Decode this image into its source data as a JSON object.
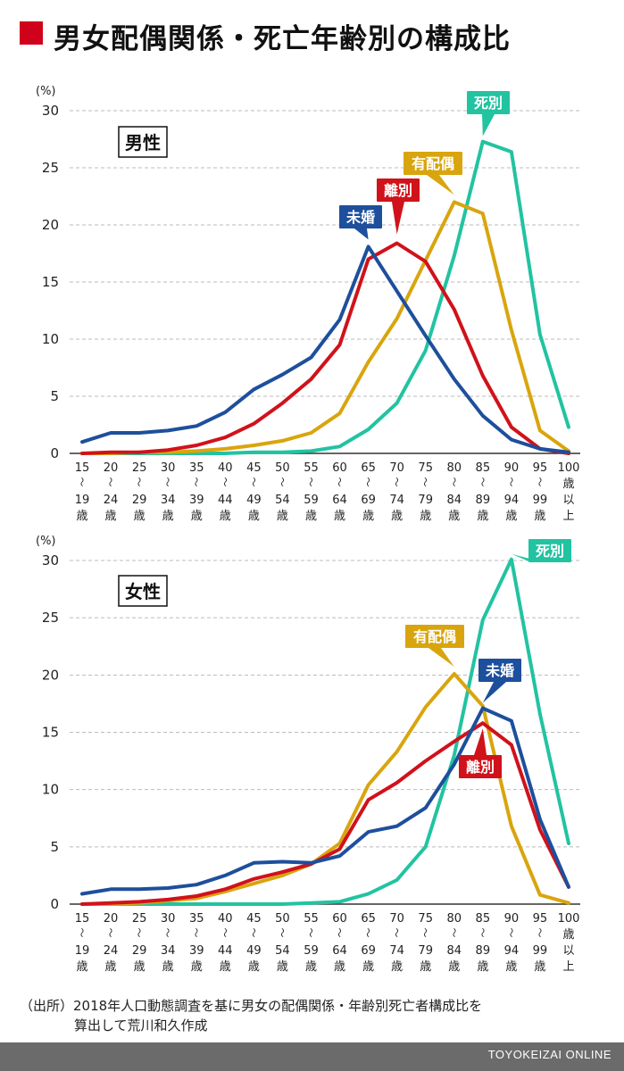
{
  "title": "男女配偶関係・死亡年齢別の構成比",
  "source": {
    "line1": "（出所）2018年人口動態調査を基に男女の配偶関係・年齢別死亡者構成比を",
    "line2": "算出して荒川和久作成"
  },
  "credit": "TOYOKEIZAI ONLINE",
  "colors": {
    "未婚": "#1d4f9c",
    "離別": "#d0121b",
    "有配偶": "#d9a50e",
    "死別": "#22c3a1",
    "grid": "#bbbbbb",
    "axis": "#333333"
  },
  "chart_data": [
    {
      "type": "line",
      "title": "男性",
      "ylabel": "(%)",
      "ylim": [
        0,
        30
      ],
      "yticks": [
        0,
        5,
        10,
        15,
        20,
        25,
        30
      ],
      "categories": [
        [
          "15",
          "19"
        ],
        [
          "20",
          "24"
        ],
        [
          "25",
          "29"
        ],
        [
          "30",
          "34"
        ],
        [
          "35",
          "39"
        ],
        [
          "40",
          "44"
        ],
        [
          "45",
          "49"
        ],
        [
          "50",
          "54"
        ],
        [
          "55",
          "59"
        ],
        [
          "60",
          "64"
        ],
        [
          "65",
          "69"
        ],
        [
          "70",
          "74"
        ],
        [
          "75",
          "79"
        ],
        [
          "80",
          "84"
        ],
        [
          "85",
          "89"
        ],
        [
          "90",
          "94"
        ],
        [
          "95",
          "99"
        ],
        [
          "100",
          "以上"
        ]
      ],
      "grid": true,
      "series": [
        {
          "name": "未婚",
          "values": [
            1.0,
            1.8,
            1.8,
            2.0,
            2.4,
            3.6,
            5.6,
            6.9,
            8.4,
            11.7,
            18.1,
            14.2,
            10.3,
            6.5,
            3.3,
            1.2,
            0.4,
            0.1
          ]
        },
        {
          "name": "離別",
          "values": [
            0.0,
            0.1,
            0.1,
            0.3,
            0.7,
            1.4,
            2.6,
            4.4,
            6.5,
            9.5,
            17.0,
            18.4,
            16.8,
            12.6,
            6.8,
            2.3,
            0.4,
            0.0
          ]
        },
        {
          "name": "有配偶",
          "values": [
            0.0,
            0.0,
            0.1,
            0.1,
            0.2,
            0.4,
            0.7,
            1.1,
            1.8,
            3.5,
            8.0,
            11.8,
            16.9,
            22.0,
            21.0,
            10.8,
            2.0,
            0.2
          ]
        },
        {
          "name": "死別",
          "values": [
            0.0,
            0.0,
            0.0,
            0.0,
            0.0,
            0.0,
            0.1,
            0.1,
            0.2,
            0.6,
            2.1,
            4.4,
            9.0,
            17.3,
            27.3,
            26.4,
            10.4,
            2.3
          ]
        }
      ]
    },
    {
      "type": "line",
      "title": "女性",
      "ylabel": "(%)",
      "ylim": [
        0,
        30
      ],
      "yticks": [
        0,
        5,
        10,
        15,
        20,
        25,
        30
      ],
      "categories": [
        [
          "15",
          "19"
        ],
        [
          "20",
          "24"
        ],
        [
          "25",
          "29"
        ],
        [
          "30",
          "34"
        ],
        [
          "35",
          "39"
        ],
        [
          "40",
          "44"
        ],
        [
          "45",
          "49"
        ],
        [
          "50",
          "54"
        ],
        [
          "55",
          "59"
        ],
        [
          "60",
          "64"
        ],
        [
          "65",
          "69"
        ],
        [
          "70",
          "74"
        ],
        [
          "75",
          "79"
        ],
        [
          "80",
          "84"
        ],
        [
          "85",
          "89"
        ],
        [
          "90",
          "94"
        ],
        [
          "95",
          "99"
        ],
        [
          "100",
          "以上"
        ]
      ],
      "grid": true,
      "series": [
        {
          "name": "未婚",
          "values": [
            0.9,
            1.3,
            1.3,
            1.4,
            1.7,
            2.5,
            3.6,
            3.7,
            3.6,
            4.2,
            6.3,
            6.8,
            8.4,
            12.2,
            17.1,
            16.0,
            7.4,
            1.5
          ]
        },
        {
          "name": "離別",
          "values": [
            0.0,
            0.1,
            0.2,
            0.4,
            0.7,
            1.3,
            2.2,
            2.8,
            3.5,
            4.8,
            9.1,
            10.6,
            12.5,
            14.2,
            15.8,
            13.9,
            6.5,
            1.5
          ]
        },
        {
          "name": "有配偶",
          "values": [
            0.0,
            0.0,
            0.1,
            0.3,
            0.5,
            1.1,
            1.8,
            2.5,
            3.5,
            5.3,
            10.4,
            13.3,
            17.2,
            20.1,
            17.3,
            6.8,
            0.8,
            0.1
          ]
        },
        {
          "name": "死別",
          "values": [
            0.0,
            0.0,
            0.0,
            0.0,
            0.0,
            0.0,
            0.0,
            0.0,
            0.1,
            0.2,
            0.9,
            2.1,
            5.0,
            13.0,
            24.8,
            30.1,
            16.6,
            5.3
          ]
        }
      ]
    }
  ]
}
